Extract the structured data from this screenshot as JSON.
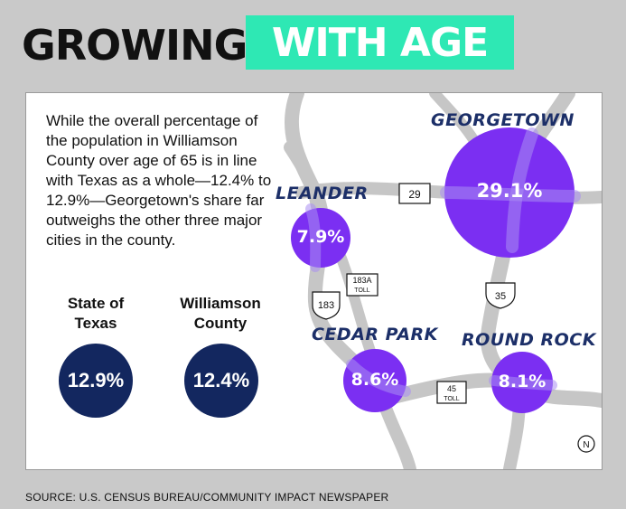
{
  "title": {
    "left": "GROWING",
    "right": "WITH AGE"
  },
  "intro": "While the overall percentage of the population in Williamson County over age of 65 is in line with Texas as a whole—12.4% to 12.9%—Georgetown's share far outweighs the other three major cities in the county.",
  "stats": [
    {
      "label_line1": "State of",
      "label_line2": "Texas",
      "value": "12.9%"
    },
    {
      "label_line1": "Williamson",
      "label_line2": "County",
      "value": "12.4%"
    }
  ],
  "cities": [
    {
      "name": "GEORGETOWN",
      "value": "29.1%",
      "percent": 29.1
    },
    {
      "name": "LEANDER",
      "value": "7.9%",
      "percent": 7.9
    },
    {
      "name": "CEDAR PARK",
      "value": "8.6%",
      "percent": 8.6
    },
    {
      "name": "ROUND ROCK",
      "value": "8.1%",
      "percent": 8.1
    }
  ],
  "roads": {
    "r29": "29",
    "r183a_line1": "183A",
    "r183a_line2": "TOLL",
    "r183": "183",
    "r35": "35",
    "r45_line1": "45",
    "r45_line2": "TOLL"
  },
  "compass": "N",
  "source": "SOURCE: U.S. CENSUS BUREAU/COMMUNITY IMPACT NEWSPAPER",
  "colors": {
    "title_box": "#2ee8b4",
    "navy": "#13275f",
    "city_bubble": "#7b2ff2",
    "city_label": "#1c2f68",
    "road": "#c6c6c6"
  }
}
